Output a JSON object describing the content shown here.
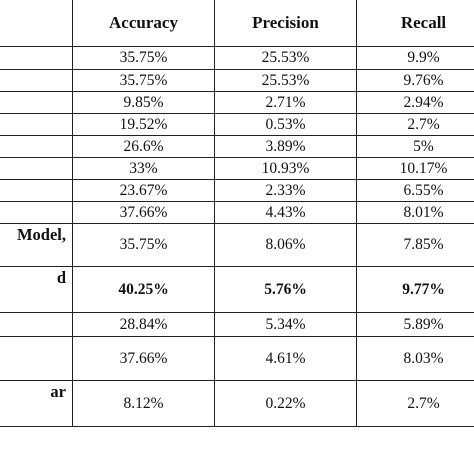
{
  "table": {
    "headers": [
      "",
      "Accuracy",
      "Precision",
      "Recall"
    ],
    "rows": [
      {
        "label": "",
        "accuracy": "35.75%",
        "precision": "25.53%",
        "recall": "9.9%"
      },
      {
        "label": "",
        "accuracy": "35.75%",
        "precision": "25.53%",
        "recall": "9.76%"
      },
      {
        "label": "",
        "accuracy": "9.85%",
        "precision": "2.71%",
        "recall": "2.94%"
      },
      {
        "label": "",
        "accuracy": "19.52%",
        "precision": "0.53%",
        "recall": "2.7%"
      },
      {
        "label": "",
        "accuracy": "26.6%",
        "precision": "3.89%",
        "recall": "5%"
      },
      {
        "label": "",
        "accuracy": "33%",
        "precision": "10.93%",
        "recall": "10.17%"
      },
      {
        "label": "",
        "accuracy": "23.67%",
        "precision": "2.33%",
        "recall": "6.55%"
      },
      {
        "label": "",
        "accuracy": "37.66%",
        "precision": "4.43%",
        "recall": "8.01%"
      },
      {
        "label": "Model,",
        "accuracy": "35.75%",
        "precision": "8.06%",
        "recall": "7.85%"
      },
      {
        "label": "d",
        "accuracy": "40.25%",
        "precision": "5.76%",
        "recall": "9.77%"
      },
      {
        "label": "",
        "accuracy": "28.84%",
        "precision": "5.34%",
        "recall": "5.89%"
      },
      {
        "label": "",
        "accuracy": "37.66%",
        "precision": "4.61%",
        "recall": "8.03%"
      },
      {
        "label": "ar",
        "accuracy": "8.12%",
        "precision": "0.22%",
        "recall": "2.7%"
      }
    ]
  }
}
